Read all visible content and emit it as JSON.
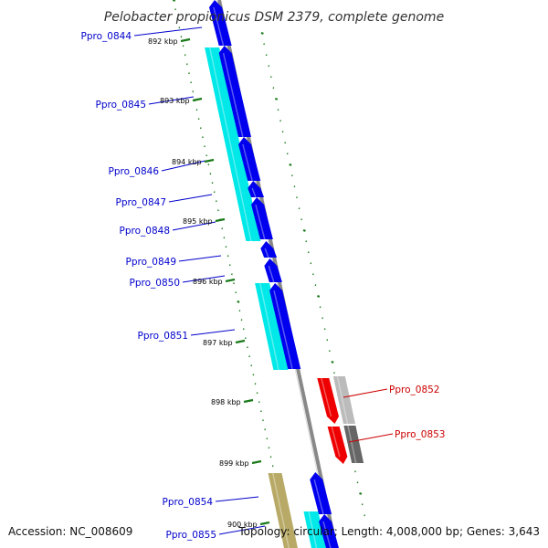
{
  "title": "Pelobacter propionicus DSM 2379, complete genome",
  "footer": {
    "accession": "Accession: NC_008609",
    "topology": "Topology: circular; Length: 4,008,000 bp; Genes: 3,643"
  },
  "colors": {
    "forward_strand": "#0000ee",
    "cds_track_1": "#00e8e8",
    "reverse_strand": "#ee0000",
    "reverse_grey": "#bbbbbb",
    "reverse_dark": "#666666",
    "olive_track": "#b8aa66",
    "backbone": "#888888",
    "tick": "#1a7a1a",
    "forward_label": "#0000cc",
    "reverse_label": "#cc0000"
  },
  "kbp_ticks": [
    "892 kbp",
    "893 kbp",
    "894 kbp",
    "895 kbp",
    "896 kbp",
    "897 kbp",
    "898 kbp",
    "899 kbp",
    "900 kbp"
  ],
  "genes": [
    {
      "name": "Ppro_0844",
      "strand": "forward"
    },
    {
      "name": "Ppro_0845",
      "strand": "forward"
    },
    {
      "name": "Ppro_0846",
      "strand": "forward"
    },
    {
      "name": "Ppro_0847",
      "strand": "forward"
    },
    {
      "name": "Ppro_0848",
      "strand": "forward"
    },
    {
      "name": "Ppro_0849",
      "strand": "forward"
    },
    {
      "name": "Ppro_0850",
      "strand": "forward"
    },
    {
      "name": "Ppro_0851",
      "strand": "forward"
    },
    {
      "name": "Ppro_0852",
      "strand": "reverse"
    },
    {
      "name": "Ppro_0853",
      "strand": "reverse"
    },
    {
      "name": "Ppro_0854",
      "strand": "forward"
    },
    {
      "name": "Ppro_0855",
      "strand": "forward"
    }
  ]
}
